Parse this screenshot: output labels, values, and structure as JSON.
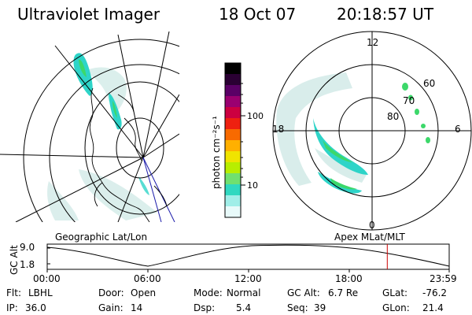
{
  "header": {
    "title": "Ultraviolet Imager",
    "date": "18 Oct 07",
    "time": "20:18:57 UT"
  },
  "colorbar": {
    "unit_label": "photon cm⁻²s⁻¹",
    "ticks": [
      "100",
      "10"
    ],
    "colors_top_to_bottom": [
      "#000000",
      "#2a0033",
      "#5a0066",
      "#9a0070",
      "#cc0040",
      "#ee2010",
      "#f86a00",
      "#ffb000",
      "#f0e400",
      "#b8ee00",
      "#70e070",
      "#30d8c0",
      "#a0eee8",
      "#e8fafa"
    ]
  },
  "left_panel": {
    "label": "Geographic Lat/Lon"
  },
  "right_panel": {
    "label": "Apex MLat/MLT",
    "mlt_labels": {
      "top": "12",
      "left": "18",
      "right": "6",
      "bottom": "0"
    },
    "lat_labels": [
      "60",
      "70",
      "80"
    ]
  },
  "timeline": {
    "axis_title": "GC Alt",
    "y_ticks": [
      "9.0",
      "1.8"
    ],
    "x_ticks": [
      "00:00",
      "06:00",
      "12:00",
      "18:00",
      "23:59"
    ],
    "marker_time_fraction": 0.846,
    "marker_color": "#cc0000"
  },
  "info": {
    "flt_label": "Flt:",
    "flt_value": "LBHL",
    "ip_label": "IP:",
    "ip_value": "36.0",
    "door_label": "Door:",
    "door_value": "Open",
    "gain_label": "Gain:",
    "gain_value": "14",
    "mode_label": "Mode:",
    "mode_value": "Normal",
    "dsp_label": "Dsp:",
    "dsp_value": "5.4",
    "gcalt_label": "GC Alt:",
    "gcalt_value": "6.7 Re",
    "seq_label": "Seq:",
    "seq_value": "39",
    "glat_label": "GLat:",
    "glat_value": "-76.2",
    "glon_label": "GLon:",
    "glon_value": "21.4"
  },
  "colors": {
    "aurora_cyan": "#2ed4c8",
    "aurora_green": "#3cd86a",
    "faint": "#cfe9e6"
  }
}
